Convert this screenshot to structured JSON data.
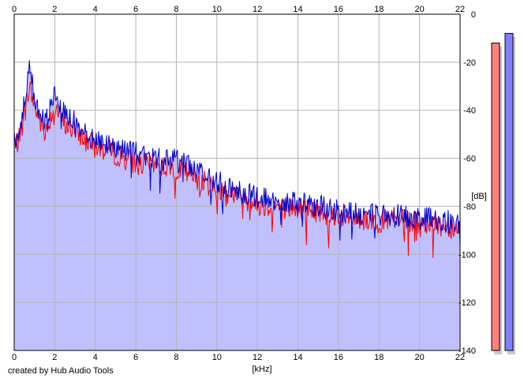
{
  "credit": "created by Hub Audio Tools",
  "colors": {
    "background": "#ffffff",
    "fill": "#c0c0ff",
    "grid": "#b4b4b4",
    "channel_left": "#ff0000",
    "channel_right": "#0000cc",
    "level_left": "#ff8080",
    "level_right": "#8080ff"
  },
  "chart_data": {
    "type": "line",
    "title": "",
    "xlabel": "[kHz]",
    "ylabel": "[dB]",
    "xlim": [
      0,
      22
    ],
    "ylim": [
      -140,
      0
    ],
    "x_ticks": [
      "0",
      "2",
      "4",
      "6",
      "8",
      "10",
      "12",
      "14",
      "16",
      "18",
      "20",
      "22"
    ],
    "y_ticks": [
      "0",
      "-20",
      "-40",
      "-60",
      "-80",
      "-100",
      "-120",
      "-140"
    ],
    "grid": true,
    "x_axis_position": "top and bottom",
    "y_axis_position": "right",
    "x": [
      0,
      0.25,
      0.5,
      0.75,
      1.0,
      1.5,
      2.0,
      2.5,
      3.0,
      3.5,
      4.0,
      5.0,
      6.0,
      7.0,
      8.0,
      9.0,
      10.0,
      11.0,
      12.0,
      13.0,
      14.0,
      15.0,
      16.0,
      17.0,
      18.0,
      19.0,
      20.0,
      21.0,
      22.0
    ],
    "series": [
      {
        "color": "#ff0000",
        "values": [
          -55,
          -52,
          -42,
          -30,
          -38,
          -50,
          -38,
          -46,
          -48,
          -52,
          -55,
          -58,
          -62,
          -63,
          -64,
          -68,
          -73,
          -75,
          -79,
          -80,
          -81,
          -82,
          -84,
          -85,
          -86,
          -86,
          -87,
          -88,
          -89
        ]
      },
      {
        "color": "#0000cc",
        "values": [
          -53,
          -49,
          -38,
          -22,
          -34,
          -46,
          -32,
          -42,
          -44,
          -48,
          -52,
          -55,
          -58,
          -60,
          -61,
          -65,
          -70,
          -73,
          -76,
          -78,
          -79,
          -80,
          -82,
          -83,
          -84,
          -84,
          -85,
          -86,
          -87
        ]
      }
    ],
    "level_meters": [
      {
        "color": "#ff8080",
        "level_db": -12
      },
      {
        "color": "#8080ff",
        "level_db": -8
      }
    ]
  }
}
